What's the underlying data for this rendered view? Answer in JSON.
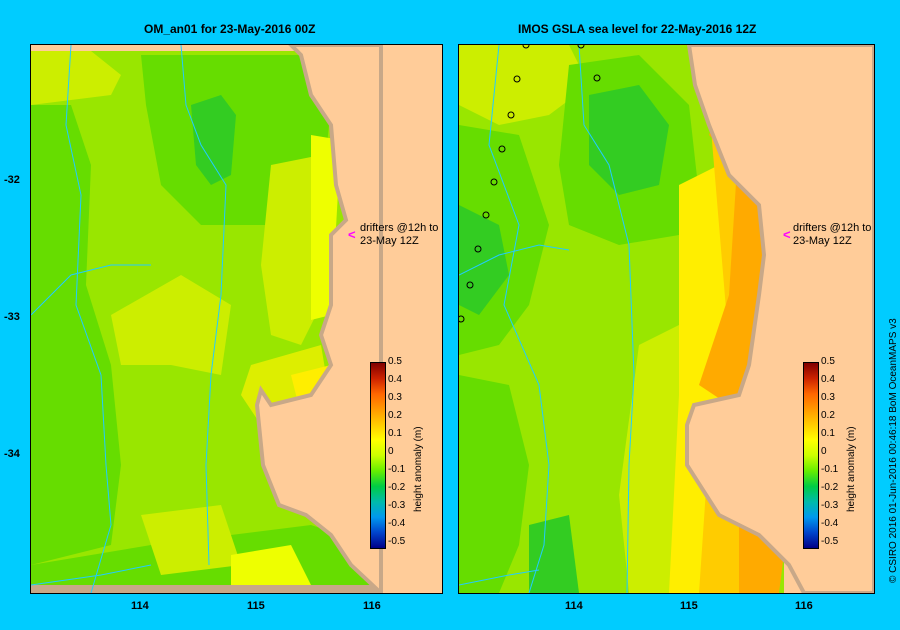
{
  "panels": [
    {
      "title": "OM_an01  for 23-May-2016 00Z"
    },
    {
      "title": "IMOS GSLA sea level  for 22-May-2016 12Z"
    }
  ],
  "drifter_note": {
    "line1": "drifters @12h to",
    "line2": "23-May 12Z"
  },
  "y_ticks": [
    "-32",
    "-33",
    "-34"
  ],
  "x_ticks": [
    "114",
    "115",
    "116"
  ],
  "colorbar": {
    "title": "height anomaly (m)",
    "ticks": [
      "0.5",
      "0.4",
      "0.3",
      "0.2",
      "0.1",
      "0",
      "-0.1",
      "-0.2",
      "-0.3",
      "-0.4",
      "-0.5"
    ],
    "colors": [
      "#800000",
      "#cc2200",
      "#ff6600",
      "#ff9900",
      "#ffcc00",
      "#ffff00",
      "#ccff00",
      "#66ee00",
      "#00cc44",
      "#00bbaa",
      "#0099ee",
      "#0044cc",
      "#000088"
    ]
  },
  "credit": "© CSIRO 2016   01-Jun-2016 00:46:18 BoM OceanMAPS v3",
  "colors": {
    "frame": "#00ccff",
    "land": "#ffcc99",
    "coast": "#c8a888",
    "track": "#22ccff",
    "arrow": "#ff00ff"
  }
}
